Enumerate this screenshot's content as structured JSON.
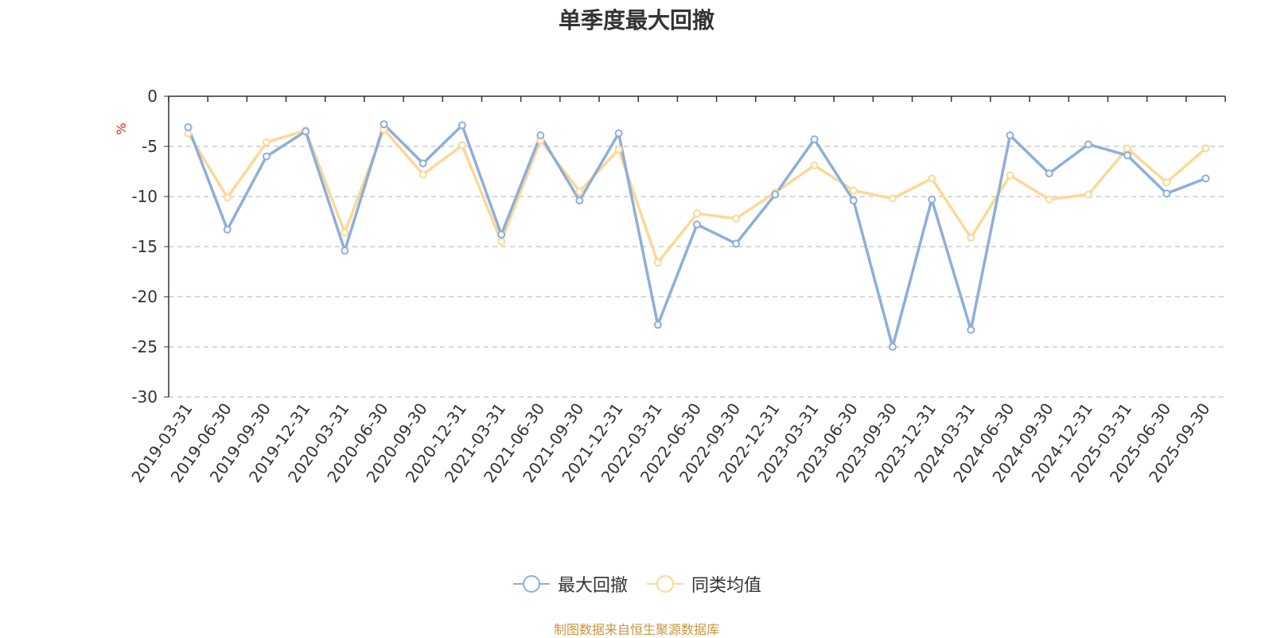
{
  "chart_data": {
    "type": "line",
    "title": "单季度最大回撤",
    "ylabel": "%",
    "ylim": [
      -30,
      0
    ],
    "yticks": [
      0,
      -5,
      -10,
      -15,
      -20,
      -25,
      -30
    ],
    "grid": true,
    "legend_position": "bottom",
    "categories": [
      "2019-03-31",
      "2019-06-30",
      "2019-09-30",
      "2019-12-31",
      "2020-03-31",
      "2020-06-30",
      "2020-09-30",
      "2020-12-31",
      "2021-03-31",
      "2021-06-30",
      "2021-09-30",
      "2021-12-31",
      "2022-03-31",
      "2022-06-30",
      "2022-09-30",
      "2022-12-31",
      "2023-03-31",
      "2023-06-30",
      "2023-09-30",
      "2023-12-31",
      "2024-03-31",
      "2024-06-30",
      "2024-09-30",
      "2024-12-31",
      "2025-03-31",
      "2025-06-30",
      "2025-09-30"
    ],
    "series": [
      {
        "name": "最大回撤",
        "color": "#8eaedb",
        "values": [
          -3.1,
          -13.3,
          -6.0,
          -3.5,
          -15.4,
          -2.8,
          -6.7,
          -2.9,
          -13.8,
          -3.9,
          -10.4,
          -3.7,
          -22.8,
          -12.8,
          -14.7,
          -9.8,
          -4.3,
          -10.4,
          -25.0,
          -10.3,
          -23.3,
          -3.9,
          -7.7,
          -4.8,
          -5.9,
          -9.7,
          -8.2
        ]
      },
      {
        "name": "同类均值",
        "color": "#fbd995",
        "values": [
          -3.7,
          -10.1,
          -4.6,
          -3.4,
          -13.6,
          -3.3,
          -7.8,
          -4.9,
          -14.5,
          -4.4,
          -9.5,
          -5.3,
          -16.6,
          -11.7,
          -12.2,
          -9.6,
          -6.9,
          -9.4,
          -10.2,
          -8.2,
          -14.1,
          -7.9,
          -10.3,
          -9.8,
          -5.2,
          -8.6,
          -5.2
        ]
      }
    ]
  },
  "source_text": "制图数据来自恒生聚源数据库"
}
